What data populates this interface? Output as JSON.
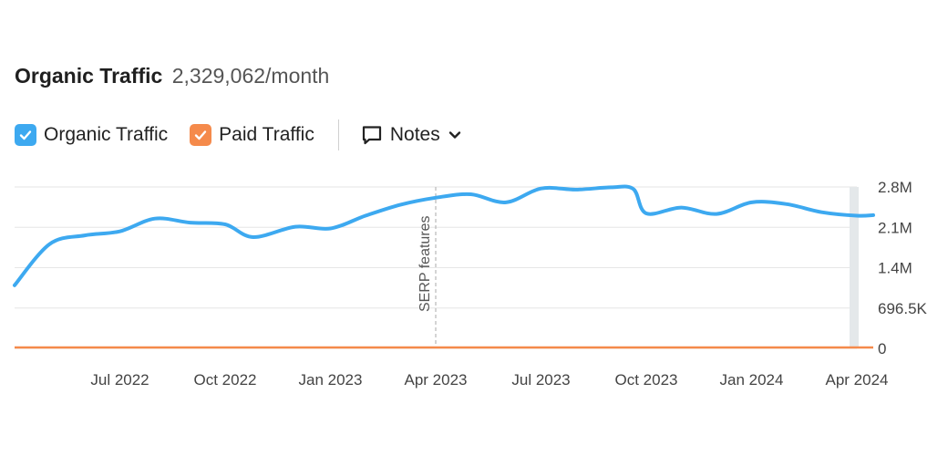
{
  "header": {
    "title": "Organic Traffic",
    "value": "2,329,062/month"
  },
  "legend": {
    "organic_label": "Organic Traffic",
    "paid_label": "Paid Traffic",
    "notes_label": "Notes",
    "organic_icon": "checkmark-icon",
    "paid_icon": "checkmark-icon",
    "notes_icon": "comment-icon",
    "dropdown_icon": "chevron-down-icon"
  },
  "colors": {
    "organic": "#3da9f0",
    "paid": "#f58a4b",
    "grid": "#e6e6e6"
  },
  "chart_data": {
    "type": "line",
    "x_domain": [
      "2022-04",
      "2024-04"
    ],
    "x_tick_labels": [
      "Jul 2022",
      "Oct 2022",
      "Jan 2023",
      "Apr 2023",
      "Jul 2023",
      "Oct 2023",
      "Jan 2024",
      "Apr 2024"
    ],
    "y_tick_labels": [
      "2.8M",
      "2.1M",
      "1.4M",
      "696.5K",
      "0"
    ],
    "y_tick_values": [
      2786000,
      2089500,
      1393000,
      696500,
      0
    ],
    "ylim": [
      0,
      2786000
    ],
    "y_axis_position": "right",
    "grid": true,
    "annotations": [
      {
        "label": "SERP features",
        "x": "2023-04"
      }
    ],
    "series": [
      {
        "name": "Organic Traffic",
        "points": [
          [
            "2022-04",
            1090000
          ],
          [
            "2022-05",
            1800000
          ],
          [
            "2022-06",
            1950000
          ],
          [
            "2022-07",
            2020000
          ],
          [
            "2022-08",
            2240000
          ],
          [
            "2022-09",
            2170000
          ],
          [
            "2022-10",
            2140000
          ],
          [
            "2022-10-25",
            1920000
          ],
          [
            "2022-12",
            2100000
          ],
          [
            "2023-01",
            2070000
          ],
          [
            "2023-02",
            2290000
          ],
          [
            "2023-03",
            2480000
          ],
          [
            "2023-04",
            2600000
          ],
          [
            "2023-05",
            2660000
          ],
          [
            "2023-06",
            2520000
          ],
          [
            "2023-07",
            2760000
          ],
          [
            "2023-08",
            2740000
          ],
          [
            "2023-09",
            2780000
          ],
          [
            "2023-09-20",
            2750000
          ],
          [
            "2023-10",
            2330000
          ],
          [
            "2023-11",
            2430000
          ],
          [
            "2023-12",
            2320000
          ],
          [
            "2024-01",
            2520000
          ],
          [
            "2024-02",
            2490000
          ],
          [
            "2024-03",
            2350000
          ],
          [
            "2024-04",
            2290000
          ],
          [
            "2024-04-15",
            2300000
          ]
        ]
      },
      {
        "name": "Paid Traffic",
        "points": [
          [
            "2022-04",
            0
          ],
          [
            "2024-04-15",
            0
          ]
        ]
      }
    ]
  }
}
